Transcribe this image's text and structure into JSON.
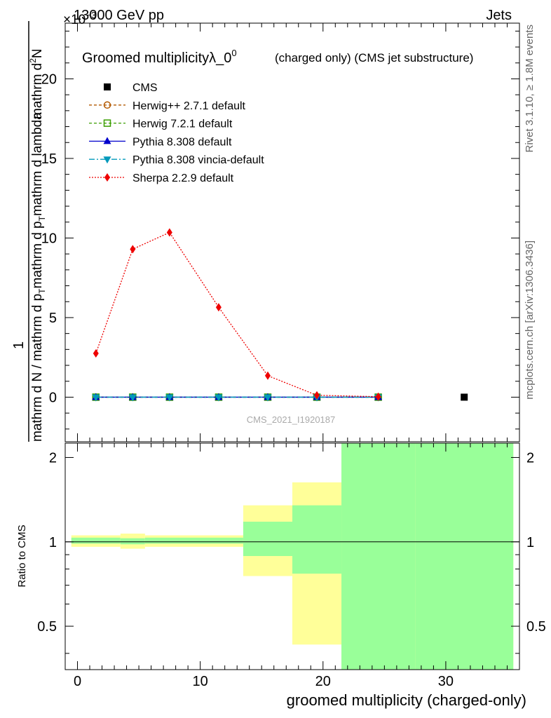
{
  "header": {
    "energy": "13000 GeV pp",
    "category": "Jets",
    "exponent_label": "×10"
  },
  "side_labels": {
    "rivet": "Rivet 3.1.10, ≥ 1.8M events",
    "mcplots": "mcplots.cern.ch [arXiv:1306.3436]"
  },
  "chart_data": [
    {
      "type": "line",
      "title": "Groomed multiplicityλ_0",
      "title_sup": "0",
      "subtitle": "(charged only) (CMS jet substructure)",
      "watermark": "CMS_2021_I1920187",
      "ylabel_parts": {
        "frac_num": "1",
        "frac_den": "mathrm d N / mathrm d p",
        "frac_den_sub": "T",
        "frac_den_tail": "mathrm d p",
        "frac_den_tail_sub": "T",
        "frac_den_end": "mathrm d lambda",
        "deriv_num": "mathrm d",
        "deriv_num_sup": "2",
        "deriv_num_end": "N"
      },
      "xlim": [
        -1,
        36
      ],
      "ylim": [
        -2.8,
        23.5
      ],
      "yticks": [
        0,
        5,
        10,
        15,
        20
      ],
      "ytick_labels": [
        "0",
        "5",
        "10",
        "15",
        "20"
      ],
      "legend_position": "top-left",
      "series": [
        {
          "name": "CMS",
          "style": "data",
          "color": "#000000",
          "marker": "square",
          "x": [
            31.5
          ],
          "y": [
            0
          ]
        },
        {
          "name": "Herwig++ 2.7.1 default",
          "color": "#b35900",
          "marker": "circle-open",
          "dash": "4,3",
          "x": [
            1.5,
            4.5,
            7.5,
            11.5,
            15.5,
            19.5,
            24.5
          ],
          "y": [
            0,
            0,
            0,
            0,
            0,
            0,
            0
          ]
        },
        {
          "name": "Herwig 7.2.1 default",
          "color": "#3a9e00",
          "marker": "square-open",
          "dash": "4,3",
          "x": [
            1.5,
            4.5,
            7.5,
            11.5,
            15.5,
            19.5,
            24.5
          ],
          "y": [
            0,
            0,
            0,
            0,
            0,
            0,
            0
          ]
        },
        {
          "name": "Pythia 8.308 default",
          "color": "#0000cc",
          "marker": "triangle-up",
          "dash": "",
          "x": [
            1.5,
            4.5,
            7.5,
            11.5,
            15.5,
            19.5,
            24.5
          ],
          "y": [
            0,
            0,
            0,
            0,
            0,
            0,
            0
          ]
        },
        {
          "name": "Pythia 8.308 vincia-default",
          "color": "#0099bb",
          "marker": "triangle-down",
          "dash": "8,3,2,3",
          "x": [
            1.5,
            4.5,
            7.5,
            11.5,
            15.5,
            19.5,
            24.5
          ],
          "y": [
            0,
            0,
            0,
            0,
            0,
            0,
            0
          ]
        },
        {
          "name": "Sherpa 2.2.9 default",
          "color": "#ee0000",
          "marker": "diamond",
          "dash": "2,2",
          "x": [
            1.5,
            4.5,
            7.5,
            11.5,
            15.5,
            19.5,
            24.5
          ],
          "y": [
            2.75,
            9.3,
            10.35,
            5.65,
            1.35,
            0.12,
            0.03
          ]
        }
      ]
    },
    {
      "type": "area",
      "ylabel": "Ratio to CMS",
      "xlabel": "groomed multiplicity (charged-only)",
      "xlim": [
        -1,
        36
      ],
      "ylim": [
        0.35,
        2.25
      ],
      "yticks": [
        0.5,
        1,
        2
      ],
      "ytick_labels": [
        "0.5",
        "1",
        "2"
      ],
      "xticks": [
        0,
        10,
        20,
        30
      ],
      "xtick_labels": [
        "0",
        "10",
        "20",
        "30"
      ],
      "reference_value": 1,
      "bands": [
        {
          "x0": -0.5,
          "x1": 3.5,
          "stat_lo": 0.985,
          "stat_hi": 1.035,
          "tot_lo": 0.96,
          "tot_hi": 1.055
        },
        {
          "x0": 3.5,
          "x1": 5.5,
          "stat_lo": 0.98,
          "stat_hi": 1.03,
          "tot_lo": 0.945,
          "tot_hi": 1.07
        },
        {
          "x0": 5.5,
          "x1": 13.5,
          "stat_lo": 0.985,
          "stat_hi": 1.035,
          "tot_lo": 0.96,
          "tot_hi": 1.055
        },
        {
          "x0": 13.5,
          "x1": 17.5,
          "stat_lo": 0.89,
          "stat_hi": 1.18,
          "tot_lo": 0.755,
          "tot_hi": 1.35
        },
        {
          "x0": 17.5,
          "x1": 21.5,
          "stat_lo": 0.77,
          "stat_hi": 1.35,
          "tot_lo": 0.43,
          "tot_hi": 1.63
        },
        {
          "x0": 21.5,
          "x1": 27.5,
          "stat_lo": 0.35,
          "stat_hi": 2.25,
          "tot_lo": 0.35,
          "tot_hi": 2.25,
          "tot_hi_visible": 2.165
        },
        {
          "x0": 27.5,
          "x1": 35.5,
          "stat_lo": 0.35,
          "stat_hi": 2.25,
          "tot_lo": 0.35,
          "tot_hi": 2.25
        }
      ],
      "colors": {
        "stat": "#99ff99",
        "total": "#ffff99"
      }
    }
  ]
}
